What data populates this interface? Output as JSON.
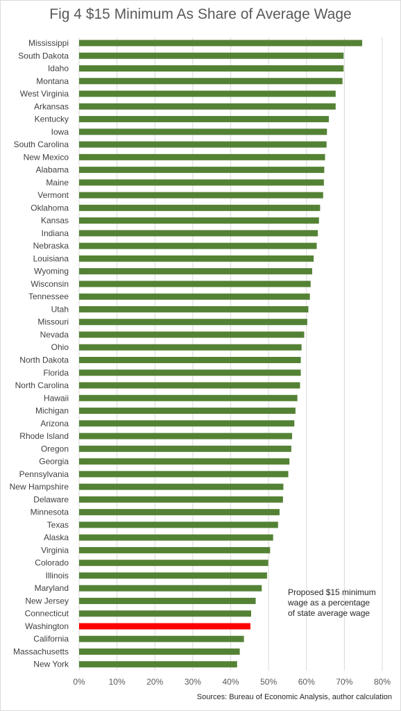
{
  "chart_data": {
    "type": "bar",
    "orientation": "horizontal",
    "title": "Fig 4 $15 Minimum As Share of Average Wage",
    "categories": [
      "Mississippi",
      "South Dakota",
      "Idaho",
      "Montana",
      "West Virginia",
      "Arkansas",
      "Kentucky",
      "Iowa",
      "South Carolina",
      "New Mexico",
      "Alabama",
      "Maine",
      "Vermont",
      "Oklahoma",
      "Kansas",
      "Indiana",
      "Nebraska",
      "Louisiana",
      "Wyoming",
      "Wisconsin",
      "Tennessee",
      "Utah",
      "Missouri",
      "Nevada",
      "Ohio",
      "North Dakota",
      "Florida",
      "North Carolina",
      "Hawaii",
      "Michigan",
      "Arizona",
      "Rhode Island",
      "Oregon",
      "Georgia",
      "Pennsylvania",
      "New Hampshire",
      "Delaware",
      "Minnesota",
      "Texas",
      "Alaska",
      "Virginia",
      "Colorado",
      "Illinois",
      "Maryland",
      "New Jersey",
      "Connecticut",
      "Washington",
      "California",
      "Massachusetts",
      "New York"
    ],
    "values": [
      74.7,
      69.8,
      69.8,
      69.5,
      67.7,
      67.7,
      65.9,
      65.4,
      65.3,
      64.9,
      64.7,
      64.6,
      64.4,
      63.6,
      63.3,
      63.0,
      62.7,
      61.9,
      61.5,
      61.1,
      60.9,
      60.5,
      60.2,
      59.4,
      58.7,
      58.5,
      58.5,
      58.3,
      57.6,
      57.1,
      56.8,
      56.2,
      56.0,
      55.5,
      55.2,
      53.9,
      53.8,
      52.9,
      52.5,
      51.2,
      50.4,
      49.9,
      49.6,
      48.2,
      46.6,
      45.4,
      45.2,
      43.5,
      42.4,
      41.7
    ],
    "highlight": "Washington",
    "xlim": [
      0,
      80
    ],
    "xticks": [
      "0%",
      "10%",
      "20%",
      "30%",
      "40%",
      "50%",
      "60%",
      "70%",
      "80%"
    ],
    "grid": true,
    "annotation": [
      "Proposed $15 minimum",
      "wage as a percentage",
      "of state average wage"
    ],
    "source": "Sources: Bureau of Economic Analysis, author calculation",
    "colors": {
      "bar": "#548235",
      "highlight": "#ff0000",
      "grid": "#d9d9d9"
    }
  }
}
